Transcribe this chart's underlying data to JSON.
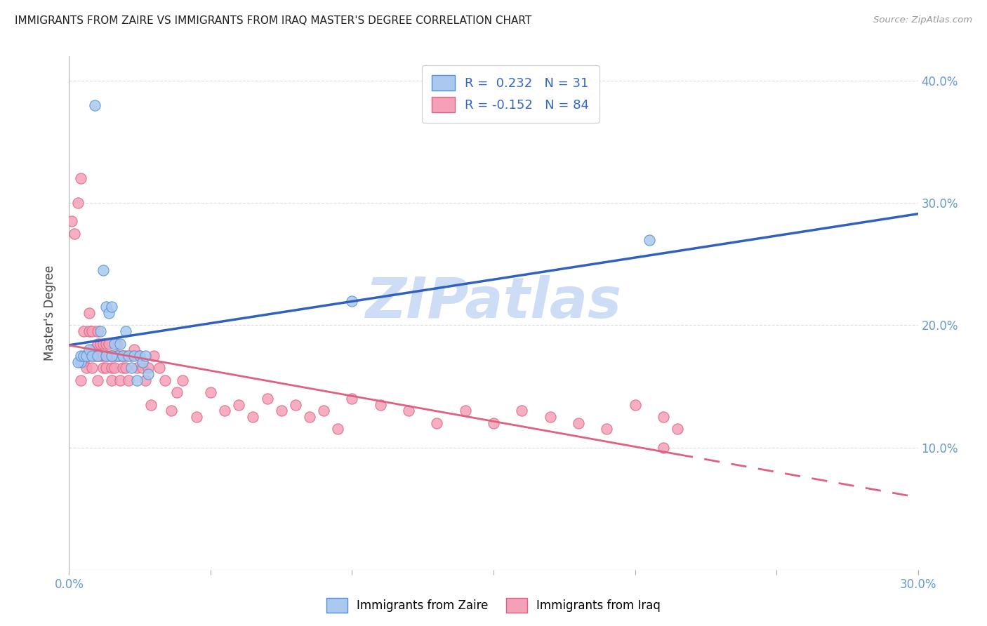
{
  "title": "IMMIGRANTS FROM ZAIRE VS IMMIGRANTS FROM IRAQ MASTER'S DEGREE CORRELATION CHART",
  "source": "Source: ZipAtlas.com",
  "ylabel": "Master's Degree",
  "xlim": [
    0.0,
    0.3
  ],
  "ylim": [
    0.0,
    0.42
  ],
  "xtick_positions": [
    0.0,
    0.05,
    0.1,
    0.15,
    0.2,
    0.25,
    0.3
  ],
  "xtick_labels_show": [
    "0.0%",
    "",
    "",
    "",
    "",
    "",
    "30.0%"
  ],
  "ytick_vals": [
    0.0,
    0.1,
    0.2,
    0.3,
    0.4
  ],
  "ytick_labels_right": [
    "",
    "10.0%",
    "20.0%",
    "30.0%",
    "40.0%"
  ],
  "legend_R_zaire": "0.232",
  "legend_N_zaire": "31",
  "legend_R_iraq": "-0.152",
  "legend_N_iraq": "84",
  "zaire_fill_color": "#aac8f0",
  "iraq_fill_color": "#f4a0b8",
  "zaire_edge_color": "#5090d0",
  "iraq_edge_color": "#e06080",
  "zaire_line_color": "#3060c0",
  "iraq_line_color": "#e06080",
  "watermark": "ZIPatlas",
  "watermark_color": "#ccddf5",
  "background_color": "#ffffff",
  "tick_color": "#6699cc",
  "grid_color": "#dddddd",
  "zaire_scatter_x": [
    0.004,
    0.009,
    0.012,
    0.013,
    0.014,
    0.015,
    0.016,
    0.017,
    0.018,
    0.019,
    0.02,
    0.021,
    0.022,
    0.023,
    0.024,
    0.025,
    0.026,
    0.027,
    0.028,
    0.003,
    0.004,
    0.005,
    0.006,
    0.007,
    0.008,
    0.01,
    0.011,
    0.013,
    0.015,
    0.1,
    0.205
  ],
  "zaire_scatter_y": [
    0.17,
    0.38,
    0.245,
    0.215,
    0.21,
    0.215,
    0.185,
    0.175,
    0.185,
    0.175,
    0.195,
    0.175,
    0.165,
    0.175,
    0.155,
    0.175,
    0.17,
    0.175,
    0.16,
    0.17,
    0.175,
    0.175,
    0.175,
    0.18,
    0.175,
    0.175,
    0.195,
    0.175,
    0.175,
    0.22,
    0.27
  ],
  "iraq_scatter_x": [
    0.001,
    0.002,
    0.003,
    0.004,
    0.004,
    0.005,
    0.005,
    0.006,
    0.006,
    0.007,
    0.007,
    0.007,
    0.008,
    0.008,
    0.008,
    0.009,
    0.009,
    0.01,
    0.01,
    0.01,
    0.01,
    0.011,
    0.011,
    0.012,
    0.012,
    0.012,
    0.013,
    0.013,
    0.013,
    0.014,
    0.014,
    0.015,
    0.015,
    0.015,
    0.016,
    0.016,
    0.017,
    0.017,
    0.018,
    0.018,
    0.019,
    0.019,
    0.02,
    0.02,
    0.021,
    0.022,
    0.023,
    0.024,
    0.025,
    0.026,
    0.027,
    0.028,
    0.029,
    0.03,
    0.032,
    0.034,
    0.036,
    0.038,
    0.04,
    0.045,
    0.05,
    0.055,
    0.06,
    0.065,
    0.07,
    0.075,
    0.08,
    0.085,
    0.09,
    0.095,
    0.1,
    0.11,
    0.12,
    0.13,
    0.14,
    0.15,
    0.16,
    0.17,
    0.18,
    0.19,
    0.2,
    0.21,
    0.215,
    0.21
  ],
  "iraq_scatter_y": [
    0.285,
    0.275,
    0.3,
    0.155,
    0.32,
    0.17,
    0.195,
    0.175,
    0.165,
    0.175,
    0.195,
    0.21,
    0.18,
    0.165,
    0.195,
    0.18,
    0.175,
    0.195,
    0.185,
    0.175,
    0.155,
    0.185,
    0.175,
    0.185,
    0.175,
    0.165,
    0.185,
    0.175,
    0.165,
    0.185,
    0.175,
    0.175,
    0.165,
    0.155,
    0.175,
    0.165,
    0.175,
    0.185,
    0.175,
    0.155,
    0.175,
    0.165,
    0.175,
    0.165,
    0.155,
    0.175,
    0.18,
    0.165,
    0.175,
    0.165,
    0.155,
    0.165,
    0.135,
    0.175,
    0.165,
    0.155,
    0.13,
    0.145,
    0.155,
    0.125,
    0.145,
    0.13,
    0.135,
    0.125,
    0.14,
    0.13,
    0.135,
    0.125,
    0.13,
    0.115,
    0.14,
    0.135,
    0.13,
    0.12,
    0.13,
    0.12,
    0.13,
    0.125,
    0.12,
    0.115,
    0.135,
    0.125,
    0.115,
    0.1
  ]
}
